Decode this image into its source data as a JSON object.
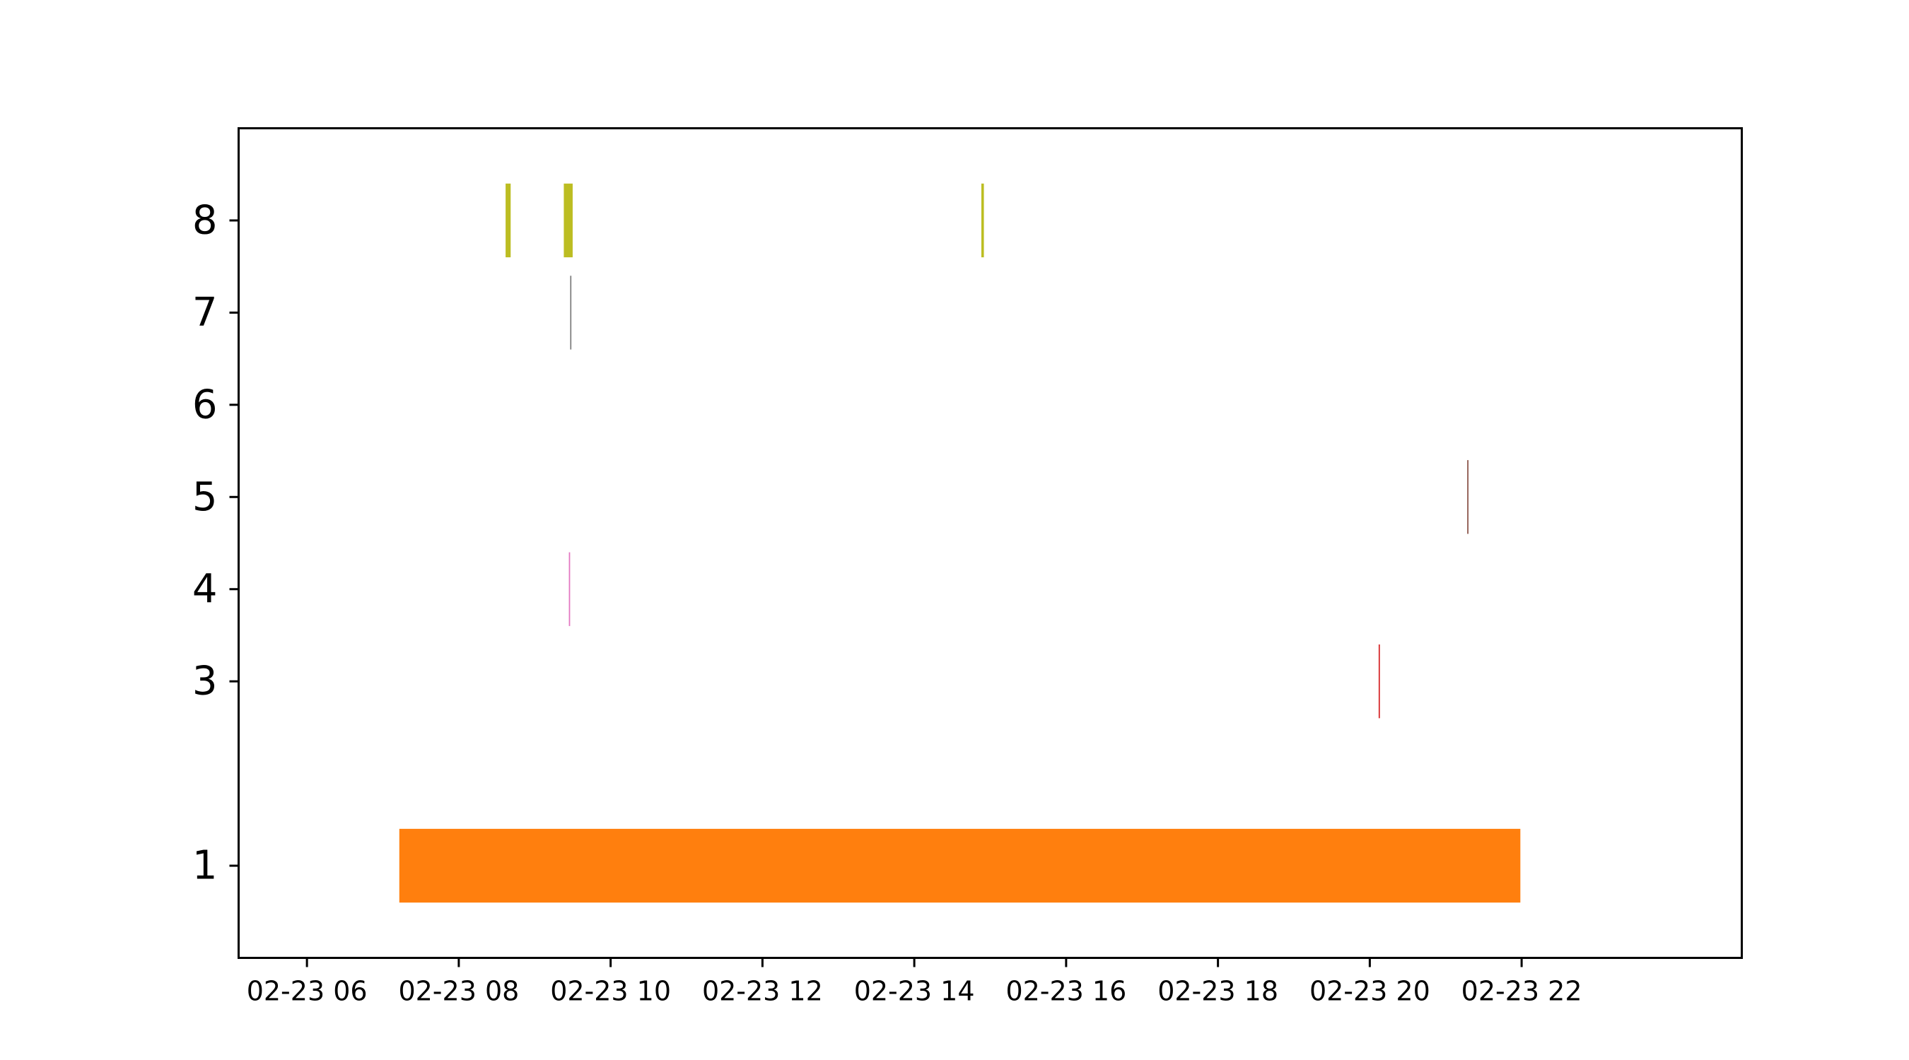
{
  "chart_data": {
    "type": "timeline",
    "title": "",
    "xlabel": "",
    "ylabel": "",
    "grid": false,
    "x_unit": "hours",
    "xlim": [
      "02-23 05:06",
      "02-23 24:54"
    ],
    "ylim": [
      0.0,
      9.0
    ],
    "x_ticks": [
      {
        "label": "02-23 06",
        "value": "02-23 06:00"
      },
      {
        "label": "02-23 08",
        "value": "02-23 08:00"
      },
      {
        "label": "02-23 10",
        "value": "02-23 10:00"
      },
      {
        "label": "02-23 12",
        "value": "02-23 12:00"
      },
      {
        "label": "02-23 14",
        "value": "02-23 14:00"
      },
      {
        "label": "02-23 16",
        "value": "02-23 16:00"
      },
      {
        "label": "02-23 18",
        "value": "02-23 18:00"
      },
      {
        "label": "02-23 20",
        "value": "02-23 20:00"
      },
      {
        "label": "02-23 22",
        "value": "02-23 22:00"
      }
    ],
    "y_ticks": [
      {
        "label": "1",
        "value": 1
      },
      {
        "label": "3",
        "value": 3
      },
      {
        "label": "4",
        "value": 4
      },
      {
        "label": "5",
        "value": 5
      },
      {
        "label": "6",
        "value": 6
      },
      {
        "label": "7",
        "value": 7
      },
      {
        "label": "8",
        "value": 8
      }
    ],
    "series": [
      {
        "y": 1,
        "color": "#ff7f0e",
        "intervals": [
          {
            "start": "02-23 07:13",
            "end": "02-23 21:59"
          }
        ]
      },
      {
        "y": 3,
        "color": "#d62728",
        "intervals": [
          {
            "start": "02-23 20:07",
            "end": "02-23 20:08"
          }
        ]
      },
      {
        "y": 4,
        "color": "#e377c2",
        "intervals": [
          {
            "start": "02-23 09:27",
            "end": "02-23 09:28"
          }
        ]
      },
      {
        "y": 5,
        "color": "#8c564b",
        "intervals": [
          {
            "start": "02-23 21:17",
            "end": "02-23 21:18"
          }
        ]
      },
      {
        "y": 7,
        "color": "#7f7f7f",
        "intervals": [
          {
            "start": "02-23 09:28",
            "end": "02-23 09:29"
          }
        ]
      },
      {
        "y": 8,
        "color": "#bcbd22",
        "intervals": [
          {
            "start": "02-23 08:37",
            "end": "02-23 08:41"
          },
          {
            "start": "02-23 09:23",
            "end": "02-23 09:30"
          },
          {
            "start": "02-23 14:53",
            "end": "02-23 14:55"
          }
        ]
      }
    ]
  }
}
